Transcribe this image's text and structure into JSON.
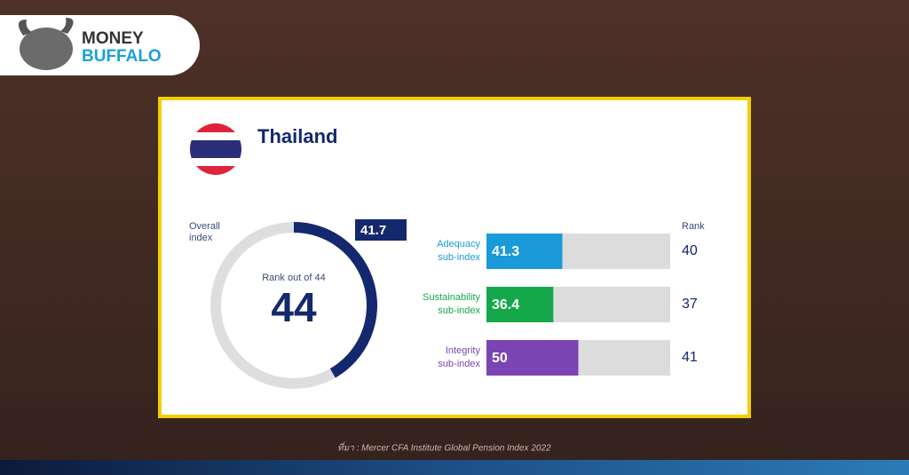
{
  "logo": {
    "line1": "MONEY",
    "line2": "BUFFALO"
  },
  "country": "Thailand",
  "overall": {
    "label": [
      "Overall",
      "index"
    ],
    "value": 41.7,
    "range": [
      0,
      100
    ],
    "color": "#14286e",
    "rank_caption": "Rank out of 44",
    "rank": 44
  },
  "sub_indices": {
    "rank_header": "Rank",
    "range": [
      0,
      100
    ],
    "items": [
      {
        "label": [
          "Adequacy",
          "sub-index"
        ],
        "value": 41.3,
        "color": "#1a9ad8",
        "rank": 40
      },
      {
        "label": [
          "Sustainability",
          "sub-index"
        ],
        "value": 36.4,
        "color": "#14a84a",
        "rank": 37
      },
      {
        "label": [
          "Integrity",
          "sub-index"
        ],
        "value": 50,
        "color": "#7b44b3",
        "rank": 41
      }
    ]
  },
  "source": "ที่มา : Mercer CFA Institute Global Pension Index 2022"
}
